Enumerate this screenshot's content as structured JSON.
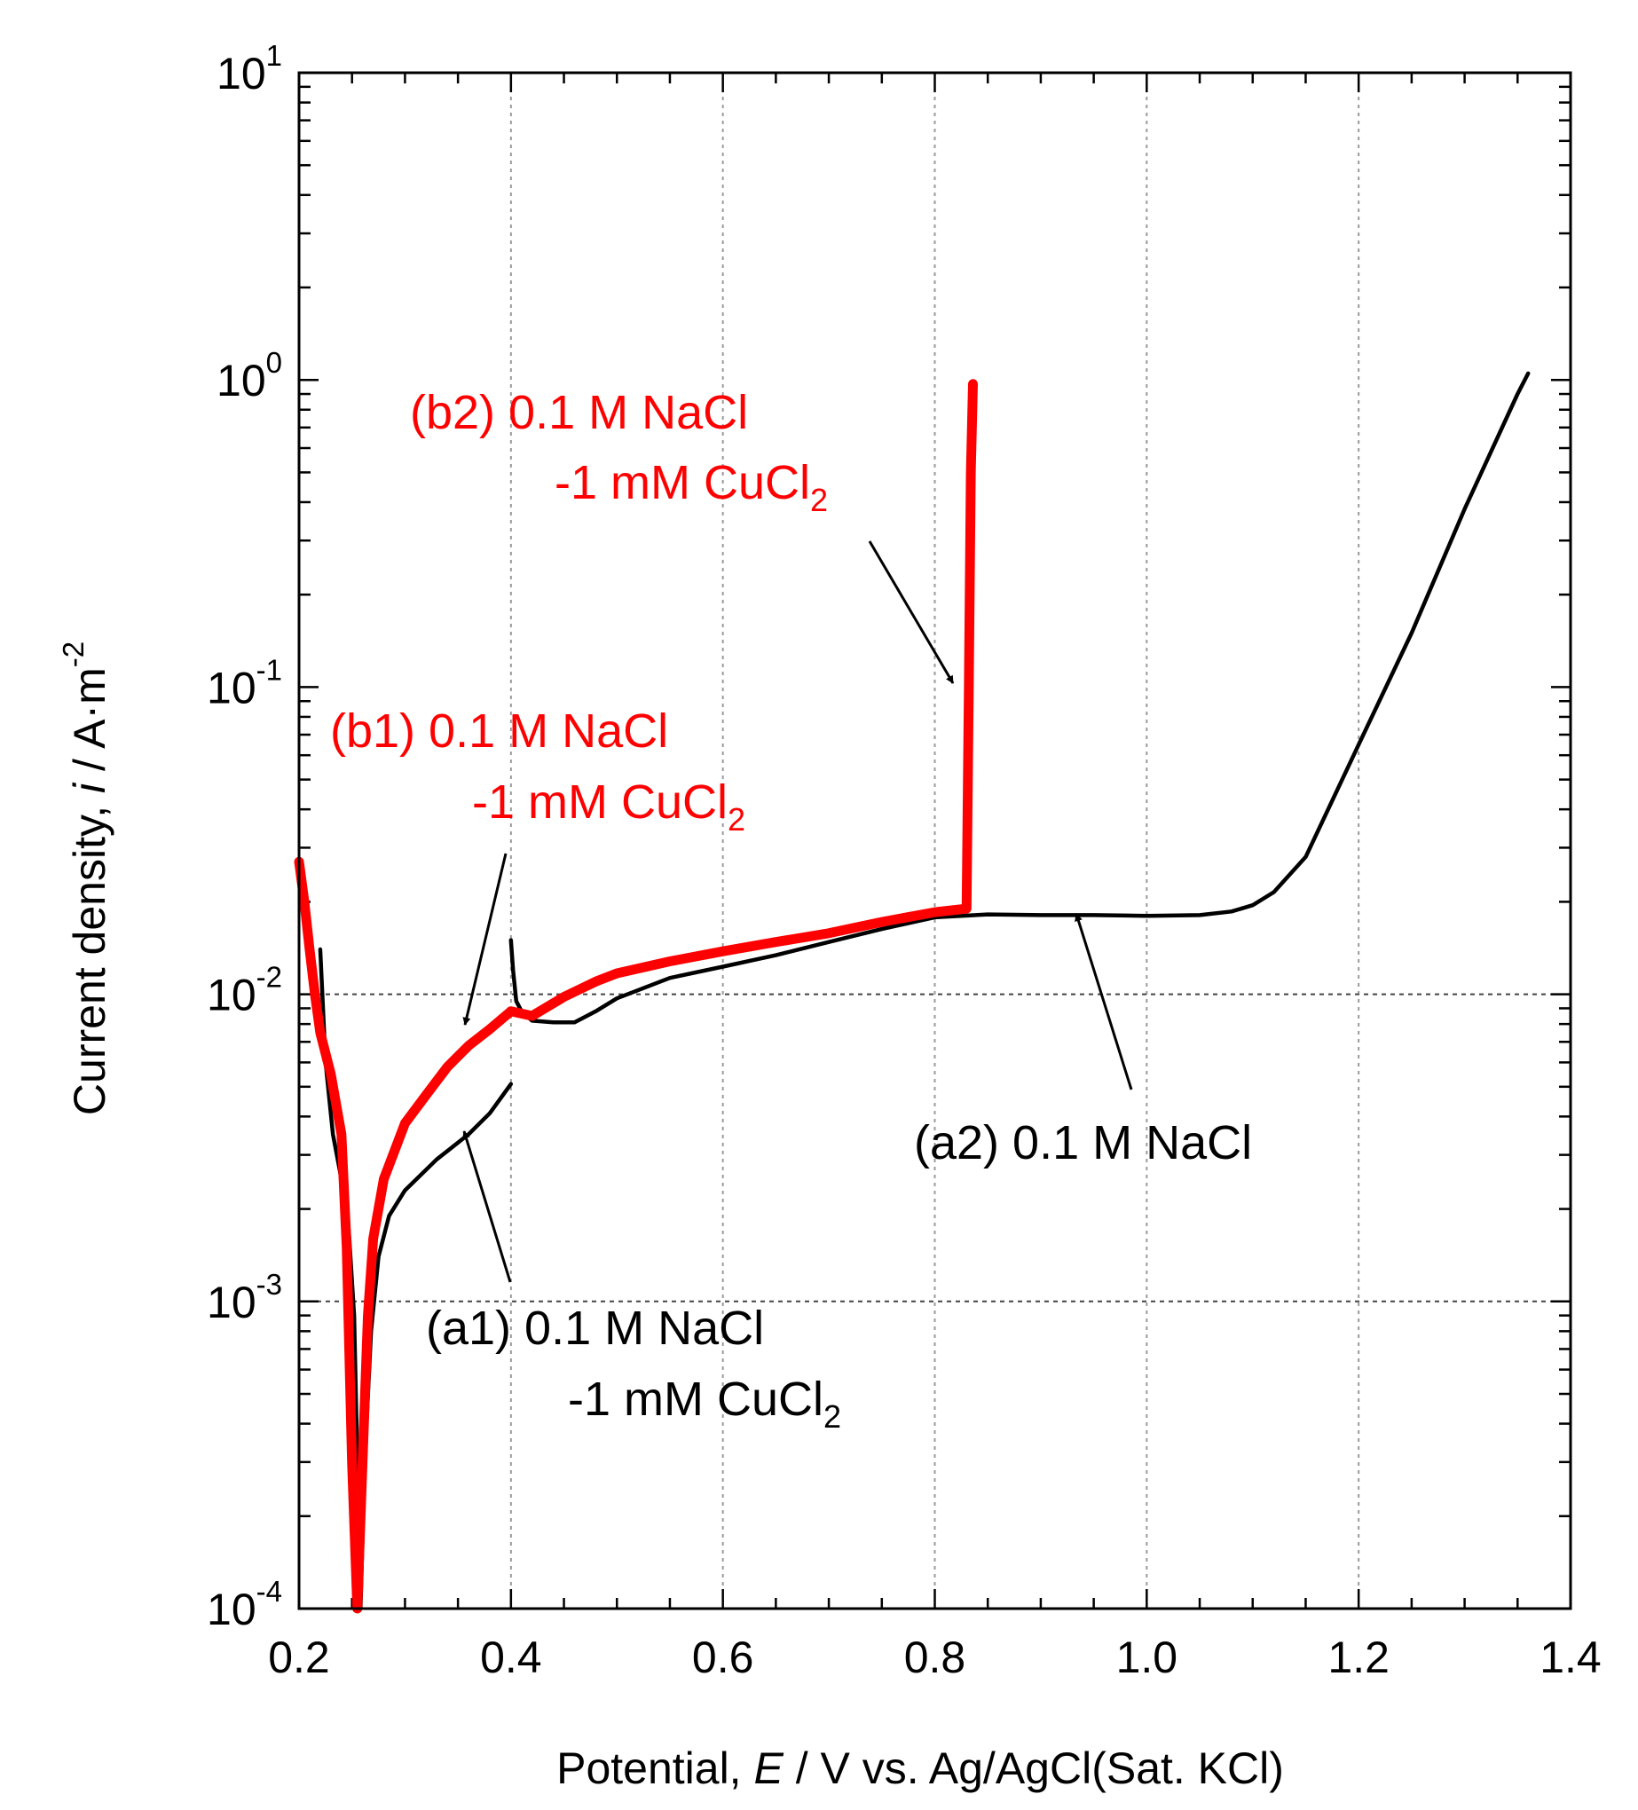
{
  "chart_data": {
    "type": "line",
    "title": "",
    "xlabel": {
      "pre": "Potential, ",
      "var": "E",
      "post": " / V vs. Ag/AgCl(Sat. KCl)"
    },
    "ylabel": {
      "pre": "Current density, ",
      "var": "i",
      "post": " / A·m",
      "sup": "-2"
    },
    "xlim": [
      0.2,
      1.4
    ],
    "ylim": [
      0.0001,
      10
    ],
    "yscale": "log",
    "x_ticks": [
      "0.2",
      "0.4",
      "0.6",
      "0.8",
      "1.0",
      "1.2",
      "1.4"
    ],
    "y_ticks": [
      {
        "base": "10",
        "exp": "1",
        "value": 10
      },
      {
        "base": "10",
        "exp": "0",
        "value": 1
      },
      {
        "base": "10",
        "exp": "-1",
        "value": 0.1
      },
      {
        "base": "10",
        "exp": "-2",
        "value": 0.01
      },
      {
        "base": "10",
        "exp": "-3",
        "value": 0.001
      },
      {
        "base": "10",
        "exp": "-4",
        "value": 0.0001
      }
    ],
    "grid": true,
    "colors": {
      "black": "#000000",
      "red": "#ff0000",
      "grid": "#9a9a9a"
    },
    "series": [
      {
        "name": "(a1) 0.1 M NaCl -1 mM CuCl2",
        "color": "#000000",
        "x": [
          0.22,
          0.225,
          0.232,
          0.24,
          0.247,
          0.252,
          0.255,
          0.258,
          0.262,
          0.268,
          0.275,
          0.285,
          0.3,
          0.33,
          0.36,
          0.38,
          0.4
        ],
        "y": [
          0.014,
          0.006,
          0.0035,
          0.0025,
          0.0017,
          0.0009,
          0.0003,
          0.0001,
          0.0003,
          0.0008,
          0.0014,
          0.0019,
          0.0023,
          0.0029,
          0.0035,
          0.0041,
          0.0051
        ]
      },
      {
        "name": "(a2) 0.1 M NaCl",
        "color": "#000000",
        "x": [
          0.4,
          0.402,
          0.405,
          0.41,
          0.42,
          0.44,
          0.46,
          0.48,
          0.5,
          0.55,
          0.6,
          0.65,
          0.7,
          0.75,
          0.8,
          0.85,
          0.9,
          0.95,
          1.0,
          1.05,
          1.08,
          1.1,
          1.12,
          1.15,
          1.2,
          1.25,
          1.3,
          1.35,
          1.36
        ],
        "y": [
          0.015,
          0.012,
          0.0095,
          0.0088,
          0.0082,
          0.0081,
          0.0081,
          0.0088,
          0.0097,
          0.0113,
          0.0123,
          0.0134,
          0.0148,
          0.0163,
          0.0178,
          0.0182,
          0.0181,
          0.0181,
          0.018,
          0.0181,
          0.0186,
          0.0195,
          0.0215,
          0.028,
          0.065,
          0.15,
          0.38,
          0.9,
          1.05
        ]
      },
      {
        "name": "(b1) 0.1 M NaCl -1 mM CuCl2",
        "color": "#ff0000",
        "x": [
          0.2,
          0.205,
          0.21,
          0.215,
          0.22,
          0.23,
          0.24,
          0.245,
          0.25,
          0.255,
          0.26,
          0.265,
          0.27,
          0.28,
          0.3,
          0.32,
          0.34,
          0.36,
          0.38,
          0.4
        ],
        "y": [
          0.027,
          0.02,
          0.014,
          0.01,
          0.0075,
          0.0055,
          0.0035,
          0.0015,
          0.0003,
          0.0001,
          0.0003,
          0.0009,
          0.0016,
          0.0025,
          0.0038,
          0.0047,
          0.0058,
          0.0068,
          0.0077,
          0.0088
        ]
      },
      {
        "name": "(b2) 0.1 M NaCl -1 mM CuCl2",
        "color": "#ff0000",
        "x": [
          0.4,
          0.42,
          0.45,
          0.48,
          0.5,
          0.55,
          0.6,
          0.65,
          0.7,
          0.75,
          0.8,
          0.83,
          0.832,
          0.834,
          0.836
        ],
        "y": [
          0.0088,
          0.0085,
          0.0098,
          0.011,
          0.0117,
          0.0128,
          0.0138,
          0.0148,
          0.0158,
          0.0172,
          0.0185,
          0.019,
          0.09,
          0.5,
          0.97
        ]
      }
    ],
    "annotations": [
      {
        "id": "b2",
        "color": "#ff0000",
        "line1": "(b2) 0.1 M NaCl",
        "line2_pre": "-1 mM CuCl",
        "line2_sub": "2"
      },
      {
        "id": "b1",
        "color": "#ff0000",
        "line1": "(b1) 0.1 M NaCl",
        "line2_pre": "-1 mM CuCl",
        "line2_sub": "2"
      },
      {
        "id": "a2",
        "color": "#000000",
        "line1": "(a2) 0.1 M NaCl"
      },
      {
        "id": "a1",
        "color": "#000000",
        "line1": "(a1) 0.1 M NaCl",
        "line2_pre": "-1 mM CuCl",
        "line2_sub": "2"
      }
    ]
  }
}
